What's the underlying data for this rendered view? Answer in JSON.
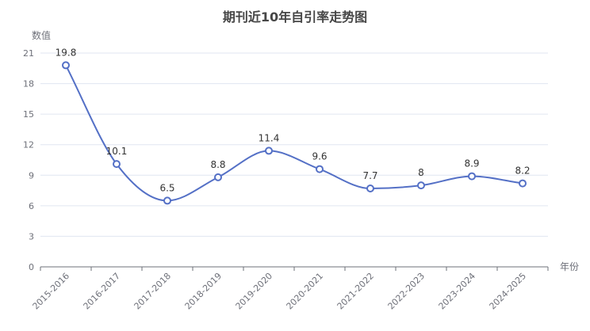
{
  "chart_data": {
    "type": "line",
    "title": "期刊近10年自引率走势图",
    "xlabel": "年份",
    "ylabel": "数值",
    "categories": [
      "2015-2016",
      "2016-2017",
      "2017-2018",
      "2018-2019",
      "2019-2020",
      "2020-2021",
      "2021-2022",
      "2022-2023",
      "2023-2024",
      "2024-2025"
    ],
    "series": [
      {
        "values": [
          19.8,
          10.1,
          6.5,
          8.8,
          11.4,
          9.6,
          7.7,
          8,
          8.9,
          8.2
        ]
      }
    ],
    "ylim": [
      0,
      21
    ],
    "yticks": [
      "0",
      "3",
      "6",
      "9",
      "12",
      "15",
      "18",
      "21"
    ],
    "grid": true,
    "smooth": true,
    "colors": {
      "line": "#5470c6",
      "grid": "#e0e6f1",
      "axis": "#6e7079"
    }
  }
}
